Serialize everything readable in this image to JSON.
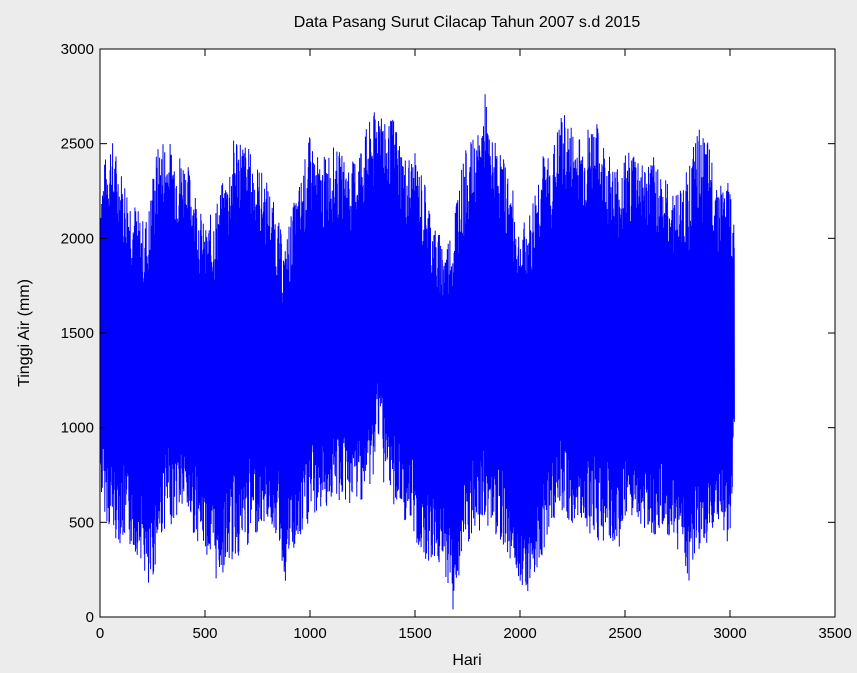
{
  "chart_data": {
    "type": "line",
    "title": "Data Pasang Surut Cilacap Tahun 2007 s.d 2015",
    "xlabel": "Hari",
    "ylabel": "Tinggi Air (mm)",
    "xlim": [
      0,
      3500
    ],
    "ylim": [
      0,
      3000
    ],
    "xticks": [
      0,
      500,
      1000,
      1500,
      2000,
      2500,
      3000,
      3500
    ],
    "yticks": [
      0,
      500,
      1000,
      1500,
      2000,
      2500,
      3000
    ],
    "grid": false,
    "series": [
      {
        "color": "#0000ff",
        "x_range": [
          0,
          3020
        ],
        "envelope_x": [
          0,
          50,
          100,
          150,
          200,
          230,
          260,
          300,
          350,
          400,
          450,
          500,
          550,
          600,
          650,
          700,
          750,
          800,
          850,
          880,
          900,
          950,
          1000,
          1050,
          1100,
          1150,
          1200,
          1250,
          1300,
          1340,
          1350,
          1400,
          1450,
          1500,
          1550,
          1600,
          1650,
          1680,
          1700,
          1750,
          1800,
          1840,
          1850,
          1900,
          1950,
          2000,
          2050,
          2080,
          2100,
          2150,
          2200,
          2250,
          2300,
          2350,
          2400,
          2450,
          2500,
          2550,
          2600,
          2650,
          2700,
          2750,
          2800,
          2850,
          2900,
          2950,
          3000,
          3020
        ],
        "envelope_max": [
          2300,
          2560,
          2380,
          2250,
          2100,
          2150,
          2450,
          2550,
          2500,
          2450,
          2300,
          2050,
          2200,
          2350,
          2600,
          2500,
          2400,
          2300,
          2100,
          1950,
          2100,
          2300,
          2550,
          2400,
          2500,
          2450,
          2400,
          2550,
          2650,
          2780,
          2600,
          2650,
          2450,
          2450,
          2300,
          2050,
          2000,
          2100,
          2300,
          2500,
          2550,
          2810,
          2550,
          2500,
          2350,
          2050,
          2150,
          2350,
          2450,
          2450,
          2680,
          2600,
          2550,
          2650,
          2520,
          2400,
          2450,
          2500,
          2400,
          2450,
          2300,
          2250,
          2400,
          2580,
          2500,
          2300,
          2320,
          2050
        ],
        "envelope_min": [
          640,
          420,
          380,
          350,
          300,
          60,
          250,
          450,
          500,
          550,
          420,
          350,
          180,
          250,
          300,
          350,
          450,
          500,
          400,
          160,
          300,
          350,
          500,
          550,
          600,
          600,
          580,
          620,
          700,
          1100,
          620,
          580,
          500,
          380,
          300,
          280,
          200,
          20,
          150,
          350,
          400,
          500,
          450,
          420,
          300,
          180,
          120,
          250,
          300,
          500,
          550,
          450,
          500,
          400,
          380,
          350,
          400,
          500,
          450,
          420,
          400,
          350,
          180,
          250,
          400,
          480,
          350,
          900
        ]
      }
    ]
  }
}
